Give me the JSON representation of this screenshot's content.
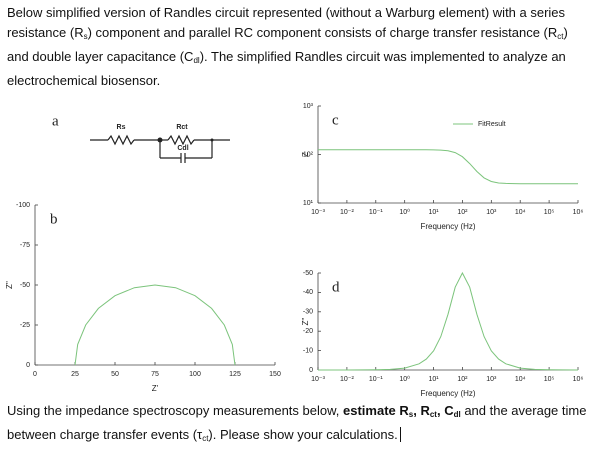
{
  "intro": [
    {
      "t": "Below simplified version of Randles circuit represented (without a Warburg element) with a series resistance (R"
    },
    {
      "sub": "s"
    },
    {
      "t": ") component and parallel RC component consists of charge transfer resistance (R"
    },
    {
      "sub": "ct"
    },
    {
      "t": ") and double layer capacitance (C"
    },
    {
      "sub": "dl"
    },
    {
      "t": "). The simplified Randles circuit was implemented to analyze an electrochemical biosensor."
    }
  ],
  "figure": {
    "a": {
      "label": "a",
      "rs": "Rs",
      "rct": "Rct",
      "cdl": "Cdl"
    },
    "b": {
      "label": "b",
      "xlabel": "Z'",
      "ylabel": "Z''",
      "color": "#7cc47c",
      "xlim": [
        0,
        150
      ],
      "ylim": [
        0,
        -100
      ],
      "xticks": [
        0,
        25,
        50,
        75,
        100,
        125,
        150
      ],
      "yticks": [
        0,
        -25,
        -50,
        -75,
        -100
      ],
      "x": [
        125,
        123.3,
        118.3,
        110.4,
        100,
        87.9,
        75,
        62.1,
        50,
        39.6,
        31.7,
        26.7,
        25
      ],
      "y": [
        0,
        -12.9,
        -25,
        -35.4,
        -43.3,
        -48.3,
        -50,
        -48.3,
        -43.3,
        -35.4,
        -25,
        -12.9,
        0
      ]
    },
    "c": {
      "label": "c",
      "xlabel": "Frequency (Hz)",
      "ylabel": "Z",
      "legend": "FitResult",
      "color": "#7cc47c",
      "xscale": "log",
      "yscale": "log",
      "xlim": [
        0.001,
        1000000
      ],
      "ylim": [
        10,
        1000
      ],
      "xticks": [
        {
          "value": 0.001,
          "label": "10⁻³"
        },
        {
          "value": 0.01,
          "label": "10⁻²"
        },
        {
          "value": 0.1,
          "label": "10⁻¹"
        },
        {
          "value": 1,
          "label": "10⁰"
        },
        {
          "value": 10,
          "label": "10¹"
        },
        {
          "value": 100,
          "label": "10²"
        },
        {
          "value": 1000,
          "label": "10³"
        },
        {
          "value": 10000,
          "label": "10⁴"
        },
        {
          "value": 100000,
          "label": "10⁵"
        },
        {
          "value": 1000000,
          "label": "10⁶"
        }
      ],
      "yticks": [
        {
          "value": 10,
          "label": "10¹"
        },
        {
          "value": 100,
          "label": "10²"
        },
        {
          "value": 1000,
          "label": "10³"
        }
      ],
      "x": [
        0.001,
        0.00316,
        0.01,
        0.0316,
        0.1,
        0.316,
        1,
        3.16,
        5.62,
        10,
        17.8,
        31.6,
        56.2,
        100,
        178,
        316,
        562,
        1000,
        1780,
        3160,
        10000,
        31600,
        100000,
        316000,
        1000000
      ],
      "y": [
        125,
        125,
        125,
        125,
        125,
        125,
        125,
        124.9,
        124.8,
        124.4,
        123.1,
        119.4,
        109.6,
        90.1,
        64.9,
        44.6,
        33.0,
        27.8,
        25.9,
        25.3,
        25,
        25,
        25,
        25,
        25
      ]
    },
    "d": {
      "label": "d",
      "xlabel": "Frequency (Hz)",
      "ylabel": "Z''",
      "color": "#7cc47c",
      "xscale": "log",
      "xlim": [
        0.001,
        1000000
      ],
      "ylim": [
        0,
        -50
      ],
      "xticks": [
        {
          "value": 0.001,
          "label": "10⁻³"
        },
        {
          "value": 0.01,
          "label": "10⁻²"
        },
        {
          "value": 0.1,
          "label": "10⁻¹"
        },
        {
          "value": 1,
          "label": "10⁰"
        },
        {
          "value": 10,
          "label": "10¹"
        },
        {
          "value": 100,
          "label": "10²"
        },
        {
          "value": 1000,
          "label": "10³"
        },
        {
          "value": 10000,
          "label": "10⁴"
        },
        {
          "value": 100000,
          "label": "10⁵"
        },
        {
          "value": 1000000,
          "label": "10⁶"
        }
      ],
      "yticks": [
        0,
        -10,
        -20,
        -30,
        -40,
        -50
      ],
      "x": [
        0.001,
        0.00316,
        0.01,
        0.0316,
        0.1,
        0.316,
        1,
        3.16,
        5.62,
        10,
        17.8,
        31.6,
        56.2,
        100,
        178,
        316,
        562,
        1000,
        1780,
        3160,
        10000,
        31600,
        100000,
        316000,
        1000000
      ],
      "y": [
        -0.001,
        -0.003,
        -0.01,
        -0.03,
        -0.1,
        -0.3,
        -1.0,
        -3.2,
        -5.6,
        -9.9,
        -17.2,
        -28.7,
        -42.7,
        -50,
        -42.7,
        -28.7,
        -17.2,
        -9.9,
        -5.6,
        -3.2,
        -1.0,
        -0.3,
        -0.1,
        -0.03,
        -0.01
      ]
    }
  },
  "question": [
    {
      "t": "Using the impedance spectroscopy measurements below, "
    },
    {
      "b": "estimate R"
    },
    {
      "bsub": "s"
    },
    {
      "b": ", R"
    },
    {
      "bsub": "ct"
    },
    {
      "b": ", C"
    },
    {
      "bsub": "dl"
    },
    {
      "t": " and the average time between charge transfer events (τ"
    },
    {
      "sub": "ct"
    },
    {
      "t": "). Please show your calculations."
    }
  ]
}
